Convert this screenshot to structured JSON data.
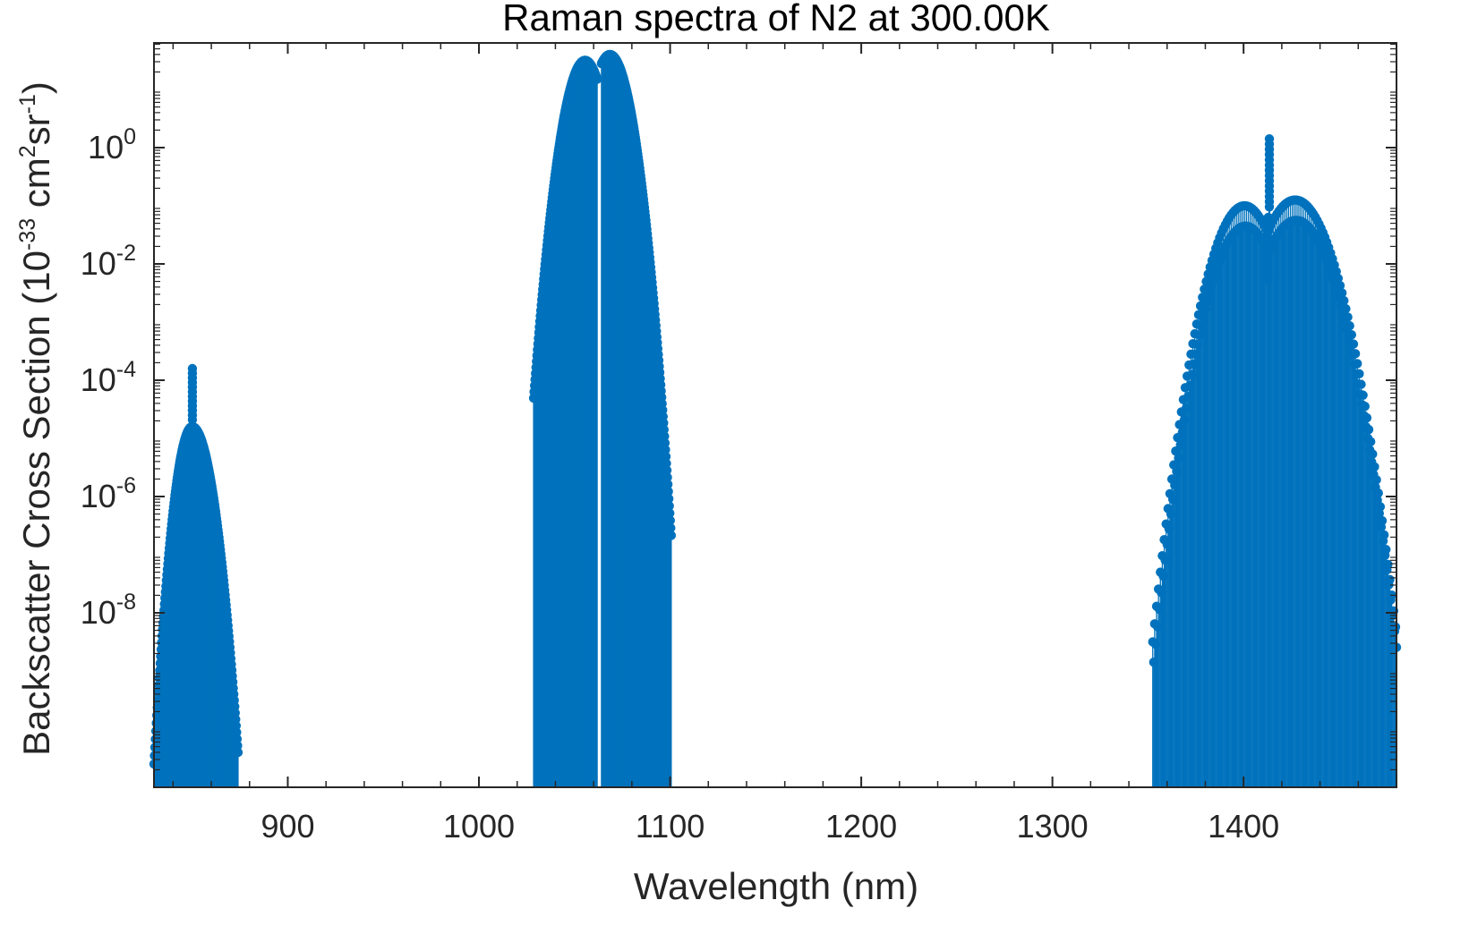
{
  "chart_data": {
    "type": "stem",
    "title": "Raman spectra of N2 at 300.00K",
    "xlabel": "Wavelength (nm)",
    "ylabel": {
      "prefix": "Backscatter Cross Section (10",
      "exp1": "-33",
      "mid1": " cm",
      "exp2": "2",
      "mid2": "sr",
      "exp3": "-1",
      "suffix": ")"
    },
    "xlim": [
      830,
      1480
    ],
    "ylim_log10": [
      -11,
      1.8
    ],
    "yscale": "log",
    "grid": false,
    "color": "#0072BD",
    "x_ticks": [
      {
        "value": 900,
        "label": "900"
      },
      {
        "value": 1000,
        "label": "1000"
      },
      {
        "value": 1100,
        "label": "1100"
      },
      {
        "value": 1200,
        "label": "1200"
      },
      {
        "value": 1300,
        "label": "1300"
      },
      {
        "value": 1400,
        "label": "1400"
      }
    ],
    "y_ticks": [
      {
        "exp": -8,
        "base": "10",
        "sup": "-8"
      },
      {
        "exp": -6,
        "base": "10",
        "sup": "-6"
      },
      {
        "exp": -4,
        "base": "10",
        "sup": "-4"
      },
      {
        "exp": -2,
        "base": "10",
        "sup": "-2"
      },
      {
        "exp": 0,
        "base": "10",
        "sup": "0"
      }
    ],
    "bands": [
      {
        "name": "band-850",
        "x_start": 830.0,
        "x_end": 874.0,
        "spacing": 0.25,
        "center": 850.0,
        "peak_log10": -4.8,
        "left_log10": -10.6,
        "right_log10": -10.4,
        "q_branch_log10": -3.8
      },
      {
        "name": "band-1064",
        "x_start": 1028.6,
        "x_end": 1100.6,
        "spacing": 0.25,
        "gap": [
          1062.0,
          1064.0
        ],
        "lobes": [
          {
            "center": 1055.5,
            "peak_log10": 1.5,
            "width": 18.0
          },
          {
            "center": 1068.5,
            "peak_log10": 1.6,
            "width": 18.0
          }
        ]
      },
      {
        "name": "band-1410",
        "x_start": 1352.5,
        "x_end": 1479.5,
        "spacing": 1.0,
        "lobes": [
          {
            "center": 1400.5,
            "peak_log10": -1.0,
            "width": 38.0
          },
          {
            "center": 1427.0,
            "peak_log10": -0.9,
            "width": 42.0
          }
        ],
        "q_branch_log10": 0.15,
        "q_branch_x": 1413.5
      }
    ]
  }
}
